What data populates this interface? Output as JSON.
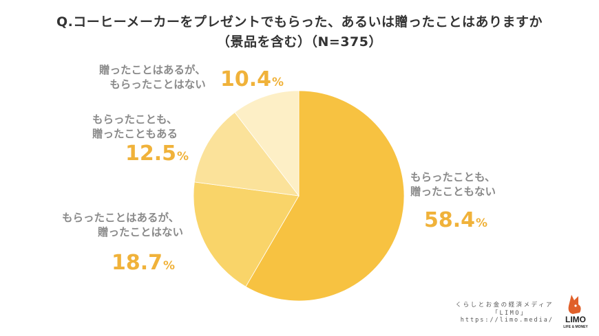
{
  "title": {
    "line1": "Q.コーヒーメーカーをプレゼントでもらった、あるいは贈ったことはありますか",
    "line2": "（景品を含む）（N=375）"
  },
  "chart_data": {
    "type": "pie",
    "unit": "%",
    "slices": [
      {
        "label_lines": [
          "もらったことも、",
          "贈ったこともない"
        ],
        "value": 58.4,
        "color": "#f7c241"
      },
      {
        "label_lines": [
          "もらったことはあるが、",
          "贈ったことはない"
        ],
        "value": 18.7,
        "color": "#f9d469"
      },
      {
        "label_lines": [
          "もらったことも、",
          "贈ったこともある"
        ],
        "value": 12.5,
        "color": "#fbe29a"
      },
      {
        "label_lines": [
          "贈ったことはあるが、",
          "もらったことはない"
        ],
        "value": 10.4,
        "color": "#fdefc6"
      }
    ]
  },
  "credit": {
    "line1": "くらしとお金の経済メディア",
    "line2": "「LIMO」",
    "line3": "https://limo.media/"
  },
  "logo": {
    "text": "LIMO",
    "subtext": "LIFE & MONEY",
    "color": "#e0602a"
  }
}
